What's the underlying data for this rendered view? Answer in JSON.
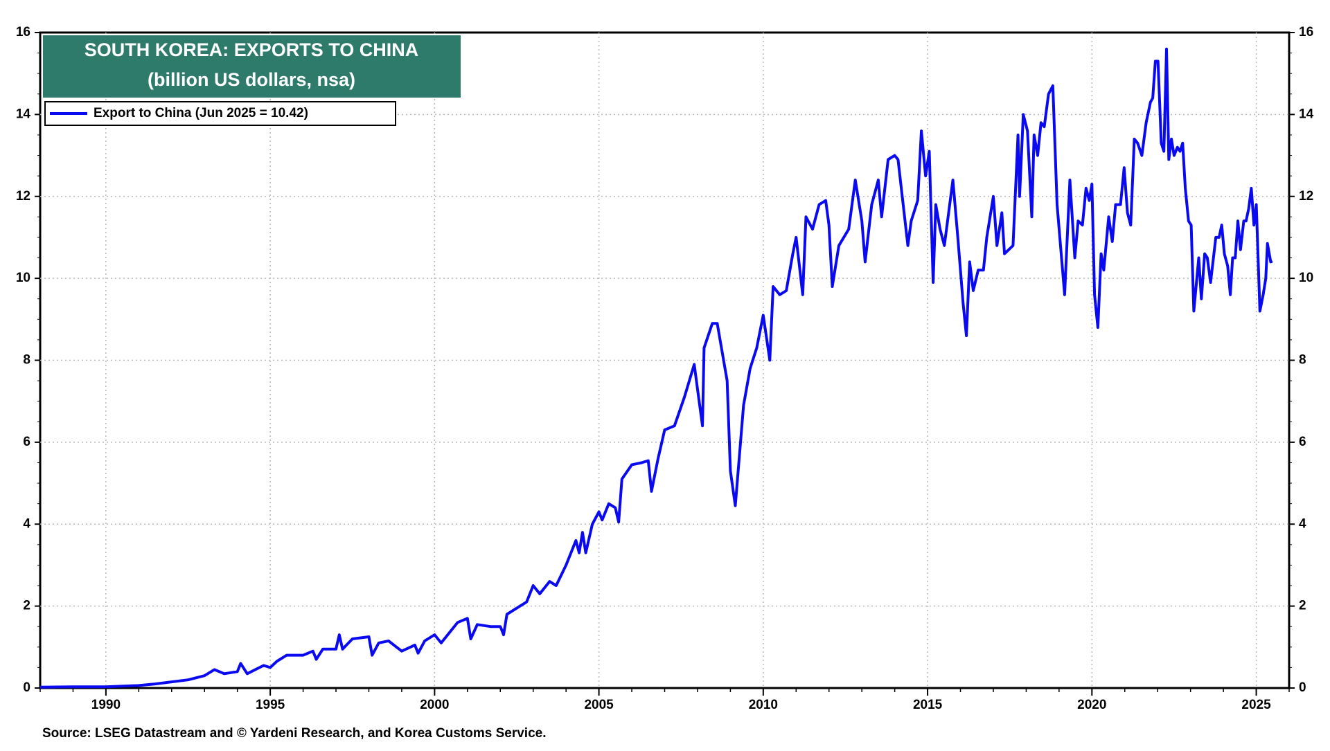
{
  "chart_data": {
    "type": "line",
    "title": "SOUTH KOREA: EXPORTS TO CHINA",
    "subtitle": "(billion US dollars, nsa)",
    "source": "Source: LSEG Datastream and © Yardeni Research, and Korea Customs Service.",
    "xlim": [
      1988,
      2026
    ],
    "xticks": [
      1990,
      1995,
      2000,
      2005,
      2010,
      2015,
      2020,
      2025
    ],
    "ylim": [
      0,
      16
    ],
    "yticks": [
      0,
      2,
      4,
      6,
      8,
      10,
      12,
      14,
      16
    ],
    "y2lim": [
      0,
      16
    ],
    "y2ticks": [
      0,
      2,
      4,
      6,
      8,
      10,
      12,
      14,
      16
    ],
    "grid": true,
    "legend": "upper left",
    "x": [
      1988.0,
      1989.0,
      1990.0,
      1991.0,
      1991.5,
      1992.0,
      1992.5,
      1993.0,
      1993.3,
      1993.6,
      1994.0,
      1994.1,
      1994.3,
      1994.8,
      1995.0,
      1995.2,
      1995.5,
      1996.0,
      1996.3,
      1996.4,
      1996.6,
      1997.0,
      1997.1,
      1997.2,
      1997.5,
      1998.0,
      1998.1,
      1998.3,
      1998.6,
      1999.0,
      1999.4,
      1999.5,
      1999.7,
      2000.0,
      2000.2,
      2000.5,
      2000.7,
      2001.0,
      2001.1,
      2001.3,
      2001.7,
      2002.0,
      2002.1,
      2002.2,
      2002.5,
      2002.8,
      2003.0,
      2003.2,
      2003.5,
      2003.7,
      2004.0,
      2004.3,
      2004.4,
      2004.5,
      2004.6,
      2004.8,
      2005.0,
      2005.1,
      2005.3,
      2005.5,
      2005.6,
      2005.7,
      2006.0,
      2006.3,
      2006.5,
      2006.6,
      2006.8,
      2007.0,
      2007.3,
      2007.6,
      2007.9,
      2008.0,
      2008.15,
      2008.2,
      2008.45,
      2008.6,
      2008.9,
      2009.0,
      2009.15,
      2009.4,
      2009.6,
      2009.8,
      2010.0,
      2010.2,
      2010.3,
      2010.5,
      2010.7,
      2010.9,
      2011.0,
      2011.2,
      2011.3,
      2011.5,
      2011.7,
      2011.9,
      2012.0,
      2012.1,
      2012.3,
      2012.6,
      2012.8,
      2013.0,
      2013.1,
      2013.3,
      2013.5,
      2013.6,
      2013.8,
      2014.0,
      2014.1,
      2014.4,
      2014.5,
      2014.7,
      2014.81,
      2014.94,
      2015.05,
      2015.17,
      2015.25,
      2015.38,
      2015.51,
      2015.77,
      2015.92,
      2016.08,
      2016.18,
      2016.28,
      2016.39,
      2016.54,
      2016.7,
      2016.8,
      2017.0,
      2017.11,
      2017.26,
      2017.34,
      2017.6,
      2017.75,
      2017.8,
      2017.91,
      2018.04,
      2018.17,
      2018.24,
      2018.35,
      2018.45,
      2018.55,
      2018.68,
      2018.81,
      2018.94,
      2019.17,
      2019.33,
      2019.48,
      2019.58,
      2019.71,
      2019.82,
      2019.92,
      2020.0,
      2020.08,
      2020.18,
      2020.28,
      2020.36,
      2020.51,
      2020.62,
      2020.72,
      2020.87,
      2020.98,
      2021.08,
      2021.18,
      2021.29,
      2021.39,
      2021.52,
      2021.65,
      2021.78,
      2021.85,
      2021.93,
      2022.01,
      2022.11,
      2022.19,
      2022.27,
      2022.34,
      2022.42,
      2022.5,
      2022.6,
      2022.68,
      2022.76,
      2022.84,
      2022.94,
      2023.02,
      2023.1,
      2023.25,
      2023.33,
      2023.43,
      2023.51,
      2023.61,
      2023.77,
      2023.87,
      2023.95,
      2024.03,
      2024.13,
      2024.21,
      2024.28,
      2024.36,
      2024.44,
      2024.52,
      2024.62,
      2024.69,
      2024.77,
      2024.85,
      2024.93,
      2025.0,
      2025.11,
      2025.21,
      2025.29,
      2025.34,
      2025.44,
      2025.49
    ],
    "series": [
      {
        "name": "Export to China (Jun 2025 = 10.42)",
        "color": "#0a0af0",
        "values": [
          0.02,
          0.03,
          0.03,
          0.06,
          0.1,
          0.15,
          0.2,
          0.3,
          0.45,
          0.35,
          0.4,
          0.6,
          0.35,
          0.55,
          0.5,
          0.65,
          0.8,
          0.8,
          0.9,
          0.7,
          0.95,
          0.95,
          1.3,
          0.95,
          1.2,
          1.25,
          0.8,
          1.1,
          1.15,
          0.9,
          1.05,
          0.85,
          1.15,
          1.3,
          1.1,
          1.4,
          1.6,
          1.7,
          1.2,
          1.55,
          1.5,
          1.5,
          1.3,
          1.8,
          1.95,
          2.1,
          2.5,
          2.3,
          2.6,
          2.5,
          3.0,
          3.6,
          3.3,
          3.8,
          3.3,
          4.0,
          4.3,
          4.1,
          4.5,
          4.4,
          4.05,
          5.1,
          5.45,
          5.5,
          5.55,
          4.8,
          5.6,
          6.3,
          6.4,
          7.1,
          7.9,
          7.3,
          6.4,
          8.3,
          8.9,
          8.9,
          7.5,
          5.3,
          4.45,
          6.9,
          7.8,
          8.3,
          9.1,
          8.0,
          9.8,
          9.6,
          9.7,
          10.6,
          11.0,
          9.6,
          11.5,
          11.2,
          11.8,
          11.9,
          11.3,
          9.8,
          10.8,
          11.2,
          12.4,
          11.4,
          10.4,
          11.8,
          12.4,
          11.5,
          12.9,
          13.0,
          12.9,
          10.8,
          11.4,
          11.9,
          13.6,
          12.5,
          13.1,
          9.9,
          11.8,
          11.2,
          10.8,
          12.4,
          11.0,
          9.4,
          8.6,
          10.4,
          9.7,
          10.2,
          10.2,
          11.0,
          12.0,
          10.8,
          11.6,
          10.6,
          10.8,
          13.5,
          12.0,
          14.0,
          13.6,
          11.5,
          13.5,
          13.0,
          13.8,
          13.7,
          14.5,
          14.7,
          11.8,
          9.6,
          12.4,
          10.5,
          11.4,
          11.3,
          12.2,
          11.9,
          12.3,
          9.6,
          8.8,
          10.6,
          10.2,
          11.5,
          10.9,
          11.8,
          11.8,
          12.7,
          11.6,
          11.3,
          13.4,
          13.3,
          13.0,
          13.8,
          14.3,
          14.4,
          15.3,
          15.3,
          13.3,
          13.1,
          15.6,
          12.9,
          13.4,
          13.0,
          13.2,
          13.1,
          13.3,
          12.2,
          11.4,
          11.3,
          9.2,
          10.5,
          9.5,
          10.6,
          10.5,
          9.9,
          11.0,
          11.0,
          11.3,
          10.6,
          10.3,
          9.6,
          10.5,
          10.5,
          11.4,
          10.7,
          11.4,
          11.4,
          11.7,
          12.2,
          11.3,
          11.8,
          9.2,
          9.6,
          10.0,
          10.85,
          10.4,
          10.42
        ]
      }
    ]
  }
}
